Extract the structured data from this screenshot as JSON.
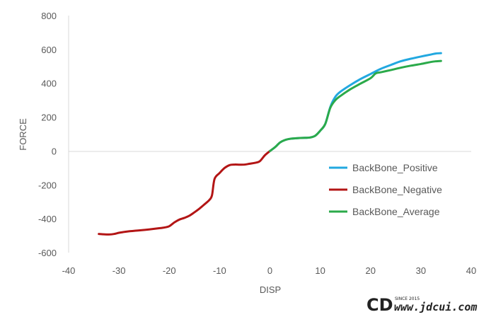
{
  "chart_data": {
    "type": "line",
    "title": "",
    "xlabel": "DISP",
    "ylabel": "FORCE",
    "xlim": [
      -40,
      40
    ],
    "ylim": [
      -600,
      800
    ],
    "xticks": [
      -40,
      -30,
      -20,
      -10,
      0,
      10,
      20,
      30,
      40
    ],
    "yticks": [
      -600,
      -400,
      -200,
      0,
      200,
      400,
      600,
      800
    ],
    "xtick_labels": [
      "-40",
      "-30",
      "-20",
      "-10",
      "0",
      "10",
      "20",
      "30",
      "40"
    ],
    "ytick_labels": [
      "-600",
      "-400",
      "-200",
      "0",
      "200",
      "400",
      "600",
      "800"
    ],
    "grid": false,
    "legend_position": "right",
    "series": [
      {
        "name": "BackBone_Positive",
        "color": "#22a8e0",
        "x": [
          0,
          1,
          2,
          3,
          4,
          5,
          6,
          7,
          8,
          9,
          10,
          11,
          12,
          13,
          14,
          16,
          18,
          20,
          22,
          24,
          26,
          28,
          30,
          32,
          33,
          34
        ],
        "y": [
          0,
          22,
          50,
          65,
          72,
          75,
          77,
          78,
          80,
          90,
          120,
          160,
          260,
          320,
          350,
          390,
          425,
          455,
          485,
          508,
          530,
          545,
          558,
          570,
          576,
          578
        ]
      },
      {
        "name": "BackBone_Negative",
        "color": "#b31515",
        "x": [
          -34,
          -33,
          -32,
          -31,
          -30,
          -29,
          -28,
          -26,
          -24,
          -22,
          -21,
          -20,
          -19,
          -18,
          -17,
          -16,
          -15,
          -14,
          -13,
          -12,
          -11.5,
          -11,
          -10,
          -9,
          -8,
          -7,
          -6,
          -5,
          -4,
          -3,
          -2,
          -1,
          0
        ],
        "y": [
          -490,
          -492,
          -493,
          -490,
          -483,
          -478,
          -474,
          -469,
          -463,
          -456,
          -452,
          -444,
          -422,
          -405,
          -395,
          -382,
          -362,
          -340,
          -315,
          -288,
          -260,
          -165,
          -130,
          -100,
          -83,
          -80,
          -81,
          -80,
          -75,
          -70,
          -60,
          -25,
          0
        ]
      },
      {
        "name": "BackBone_Average",
        "color": "#2baa4a",
        "x": [
          0,
          1,
          2,
          3,
          4,
          5,
          6,
          7,
          8,
          9,
          10,
          11,
          12,
          13,
          14,
          16,
          18,
          20,
          21,
          22,
          24,
          26,
          28,
          30,
          32,
          33,
          34
        ],
        "y": [
          0,
          22,
          50,
          65,
          72,
          75,
          77,
          78,
          80,
          90,
          120,
          160,
          255,
          300,
          325,
          365,
          398,
          430,
          458,
          465,
          478,
          492,
          504,
          514,
          526,
          530,
          532
        ]
      }
    ]
  },
  "watermark": {
    "logo_text": "CD",
    "since_text": "SINCE 2015",
    "url_text": "www.jdcui.com"
  }
}
